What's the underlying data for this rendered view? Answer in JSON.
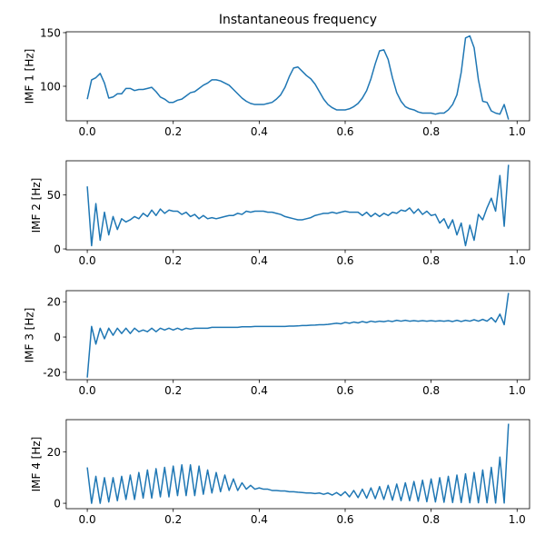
{
  "chart_data": [
    {
      "type": "line",
      "title": "Instantaneous frequency",
      "ylabel": "IMF 1 [Hz]",
      "color": "#1f77b4",
      "x": [
        0,
        0.01,
        0.02,
        0.03,
        0.04,
        0.05,
        0.06,
        0.07,
        0.08,
        0.09,
        0.1,
        0.11,
        0.12,
        0.13,
        0.14,
        0.15,
        0.16,
        0.17,
        0.18,
        0.19,
        0.2,
        0.21,
        0.22,
        0.23,
        0.24,
        0.25,
        0.26,
        0.27,
        0.28,
        0.29,
        0.3,
        0.31,
        0.32,
        0.33,
        0.34,
        0.35,
        0.36,
        0.37,
        0.38,
        0.39,
        0.4,
        0.41,
        0.42,
        0.43,
        0.44,
        0.45,
        0.46,
        0.47,
        0.48,
        0.49,
        0.5,
        0.51,
        0.52,
        0.53,
        0.54,
        0.55,
        0.56,
        0.57,
        0.58,
        0.59,
        0.6,
        0.61,
        0.62,
        0.63,
        0.64,
        0.65,
        0.66,
        0.67,
        0.68,
        0.69,
        0.7,
        0.71,
        0.72,
        0.73,
        0.74,
        0.75,
        0.76,
        0.77,
        0.78,
        0.79,
        0.8,
        0.81,
        0.82,
        0.83,
        0.84,
        0.85,
        0.86,
        0.87,
        0.88,
        0.89,
        0.9,
        0.91,
        0.92,
        0.93,
        0.94,
        0.95,
        0.96,
        0.97,
        0.98
      ],
      "values": [
        88,
        106,
        108,
        112,
        103,
        89,
        90,
        93,
        93,
        98,
        98,
        96,
        97,
        97,
        98,
        99,
        95,
        90,
        88,
        85,
        85,
        87,
        88,
        91,
        94,
        95,
        98,
        101,
        103,
        106,
        106,
        105,
        103,
        101,
        97,
        93,
        89,
        86,
        84,
        83,
        83,
        83,
        84,
        85,
        88,
        92,
        99,
        109,
        117,
        118,
        114,
        110,
        107,
        102,
        95,
        88,
        83,
        80,
        78,
        78,
        78,
        79,
        81,
        84,
        89,
        96,
        107,
        121,
        133,
        134,
        125,
        108,
        94,
        86,
        81,
        79,
        78,
        76,
        75,
        75,
        75,
        74,
        75,
        75,
        78,
        83,
        92,
        113,
        145,
        147,
        136,
        106,
        86,
        85,
        77,
        75,
        74,
        83,
        69
      ],
      "xlim": [
        -0.049,
        1.029
      ],
      "xticks": [
        {
          "value": 0,
          "label": "0.0"
        },
        0.2,
        0.4,
        0.6,
        0.8,
        {
          "value": 1,
          "label": "1.0"
        }
      ],
      "ylim": [
        67.8,
        150.8
      ],
      "yticks": [
        100,
        150
      ]
    },
    {
      "type": "line",
      "ylabel": "IMF 2 [Hz]",
      "color": "#1f77b4",
      "x": [
        0,
        0.01,
        0.02,
        0.03,
        0.04,
        0.05,
        0.06,
        0.07,
        0.08,
        0.09,
        0.1,
        0.11,
        0.12,
        0.13,
        0.14,
        0.15,
        0.16,
        0.17,
        0.18,
        0.19,
        0.2,
        0.21,
        0.22,
        0.23,
        0.24,
        0.25,
        0.26,
        0.27,
        0.28,
        0.29,
        0.3,
        0.31,
        0.32,
        0.33,
        0.34,
        0.35,
        0.36,
        0.37,
        0.38,
        0.39,
        0.4,
        0.41,
        0.42,
        0.43,
        0.44,
        0.45,
        0.46,
        0.47,
        0.48,
        0.49,
        0.5,
        0.51,
        0.52,
        0.53,
        0.54,
        0.55,
        0.56,
        0.57,
        0.58,
        0.59,
        0.6,
        0.61,
        0.62,
        0.63,
        0.64,
        0.65,
        0.66,
        0.67,
        0.68,
        0.69,
        0.7,
        0.71,
        0.72,
        0.73,
        0.74,
        0.75,
        0.76,
        0.77,
        0.78,
        0.79,
        0.8,
        0.81,
        0.82,
        0.83,
        0.84,
        0.85,
        0.86,
        0.87,
        0.88,
        0.89,
        0.9,
        0.91,
        0.92,
        0.93,
        0.94,
        0.95,
        0.96,
        0.97,
        0.98
      ],
      "values": [
        58,
        3,
        42,
        8,
        34,
        13,
        30,
        18,
        28,
        25,
        27,
        30,
        28,
        33,
        30,
        36,
        31,
        37,
        33,
        36,
        35,
        35,
        32,
        34,
        30,
        32,
        28,
        31,
        28,
        29,
        28,
        29,
        30,
        31,
        31,
        33,
        32,
        35,
        34,
        35,
        35,
        35,
        34,
        34,
        33,
        32,
        30,
        29,
        28,
        27,
        27,
        28,
        29,
        31,
        32,
        33,
        33,
        34,
        33,
        34,
        35,
        34,
        34,
        34,
        31,
        34,
        30,
        33,
        30,
        33,
        31,
        34,
        33,
        36,
        35,
        38,
        33,
        37,
        32,
        35,
        31,
        32,
        24,
        28,
        19,
        27,
        13,
        24,
        3,
        22,
        8,
        32,
        27,
        38,
        47,
        35,
        68,
        21,
        78
      ],
      "xlim": [
        -0.049,
        1.029
      ],
      "xticks": [
        {
          "value": 0,
          "label": "0.0"
        },
        0.2,
        0.4,
        0.6,
        0.8,
        {
          "value": 1,
          "label": "1.0"
        }
      ],
      "ylim": [
        -0.8,
        81.7
      ],
      "yticks": [
        0,
        50
      ]
    },
    {
      "type": "line",
      "ylabel": "IMF 3 [Hz]",
      "color": "#1f77b4",
      "x": [
        0,
        0.01,
        0.02,
        0.03,
        0.04,
        0.05,
        0.06,
        0.07,
        0.08,
        0.09,
        0.1,
        0.11,
        0.12,
        0.13,
        0.14,
        0.15,
        0.16,
        0.17,
        0.18,
        0.19,
        0.2,
        0.21,
        0.22,
        0.23,
        0.24,
        0.25,
        0.26,
        0.27,
        0.28,
        0.29,
        0.3,
        0.31,
        0.32,
        0.33,
        0.34,
        0.35,
        0.36,
        0.37,
        0.38,
        0.39,
        0.4,
        0.41,
        0.42,
        0.43,
        0.44,
        0.45,
        0.46,
        0.47,
        0.48,
        0.49,
        0.5,
        0.51,
        0.52,
        0.53,
        0.54,
        0.55,
        0.56,
        0.57,
        0.58,
        0.59,
        0.6,
        0.61,
        0.62,
        0.63,
        0.64,
        0.65,
        0.66,
        0.67,
        0.68,
        0.69,
        0.7,
        0.71,
        0.72,
        0.73,
        0.74,
        0.75,
        0.76,
        0.77,
        0.78,
        0.79,
        0.8,
        0.81,
        0.82,
        0.83,
        0.84,
        0.85,
        0.86,
        0.87,
        0.88,
        0.89,
        0.9,
        0.91,
        0.92,
        0.93,
        0.94,
        0.95,
        0.96,
        0.97,
        0.98
      ],
      "values": [
        -23,
        6,
        -4,
        5,
        -1,
        5,
        1,
        5,
        2,
        5,
        2,
        5,
        3,
        4,
        3,
        5,
        3,
        5,
        4,
        5,
        4,
        5,
        4,
        5,
        4.5,
        5,
        5,
        5,
        5,
        5.5,
        5.5,
        5.5,
        5.5,
        5.5,
        5.5,
        5.5,
        5.8,
        5.8,
        5.8,
        6,
        6,
        6,
        6,
        6,
        6,
        6,
        6,
        6.2,
        6.2,
        6.3,
        6.5,
        6.5,
        6.7,
        6.8,
        7,
        7,
        7.2,
        7.5,
        7.8,
        7.5,
        8.3,
        7.8,
        8.5,
        8,
        8.8,
        8.2,
        9,
        8.5,
        9,
        8.7,
        9.2,
        8.8,
        9.5,
        9,
        9.5,
        9,
        9.3,
        9,
        9.3,
        9,
        9.3,
        9,
        9.2,
        9,
        9.3,
        8.8,
        9.5,
        8.8,
        9.5,
        9,
        9.8,
        9,
        10,
        9,
        11,
        8.5,
        13,
        7,
        25
      ],
      "xlim": [
        -0.049,
        1.029
      ],
      "xticks": [
        {
          "value": 0,
          "label": "0.0"
        },
        0.2,
        0.4,
        0.6,
        0.8,
        {
          "value": 1,
          "label": "1.0"
        }
      ],
      "ylim": [
        -24.2,
        26.3
      ],
      "yticks": [
        -20,
        0,
        20
      ]
    },
    {
      "type": "line",
      "ylabel": "IMF 4 [Hz]",
      "color": "#1f77b4",
      "x": [
        0,
        0.01,
        0.02,
        0.03,
        0.04,
        0.05,
        0.06,
        0.07,
        0.08,
        0.09,
        0.1,
        0.11,
        0.12,
        0.13,
        0.14,
        0.15,
        0.16,
        0.17,
        0.18,
        0.19,
        0.2,
        0.21,
        0.22,
        0.23,
        0.24,
        0.25,
        0.26,
        0.27,
        0.28,
        0.29,
        0.3,
        0.31,
        0.32,
        0.33,
        0.34,
        0.35,
        0.36,
        0.37,
        0.38,
        0.39,
        0.4,
        0.41,
        0.42,
        0.43,
        0.44,
        0.45,
        0.46,
        0.47,
        0.48,
        0.49,
        0.5,
        0.51,
        0.52,
        0.53,
        0.54,
        0.55,
        0.56,
        0.57,
        0.58,
        0.59,
        0.6,
        0.61,
        0.62,
        0.63,
        0.64,
        0.65,
        0.66,
        0.67,
        0.68,
        0.69,
        0.7,
        0.71,
        0.72,
        0.73,
        0.74,
        0.75,
        0.76,
        0.77,
        0.78,
        0.79,
        0.8,
        0.81,
        0.82,
        0.83,
        0.84,
        0.85,
        0.86,
        0.87,
        0.88,
        0.89,
        0.9,
        0.91,
        0.92,
        0.93,
        0.94,
        0.95,
        0.96,
        0.97,
        0.98
      ],
      "values": [
        14,
        0,
        10.5,
        0,
        10,
        0.5,
        10,
        1,
        10.5,
        1.5,
        11,
        1.5,
        12,
        2,
        13,
        2,
        13.5,
        2.5,
        14,
        2.5,
        14.5,
        3,
        15,
        3,
        15,
        3,
        14.5,
        3.5,
        13,
        4,
        12,
        4.5,
        11,
        5,
        9.5,
        5,
        8,
        5.5,
        7,
        5.5,
        6,
        5.5,
        5.5,
        5,
        5,
        4.8,
        4.8,
        4.5,
        4.5,
        4.3,
        4.2,
        4,
        4,
        3.8,
        4,
        3.5,
        4,
        3.2,
        4.2,
        3,
        4.5,
        2.5,
        5,
        2.2,
        5.5,
        2,
        6,
        1.8,
        6.5,
        1.5,
        7,
        1.2,
        7.5,
        1,
        8,
        1,
        8.5,
        0.8,
        9,
        0.6,
        9.5,
        0.5,
        10,
        0.4,
        10.5,
        0.3,
        11,
        0.3,
        11.5,
        0.2,
        12,
        0.2,
        13,
        0.2,
        14,
        0.1,
        18,
        0.1,
        31
      ],
      "xlim": [
        -0.049,
        1.029
      ],
      "xticks": [
        {
          "value": 0,
          "label": "0.0"
        },
        0.2,
        0.4,
        0.6,
        0.8,
        {
          "value": 1,
          "label": "1.0"
        }
      ],
      "ylim": [
        -2.1,
        32.6
      ],
      "yticks": [
        0,
        20
      ]
    }
  ]
}
